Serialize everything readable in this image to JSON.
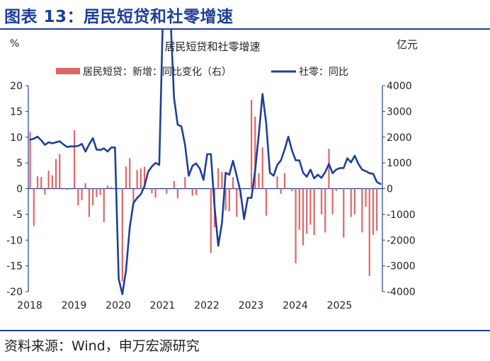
{
  "figure_title": "图表 13：居民短贷和社零增速",
  "source": "资料来源：Wind，申万宏源研究",
  "colors": {
    "title": "#1f3f99",
    "bar": "#e06666",
    "line": "#1f3f99",
    "axis": "#1f3f99"
  },
  "chart_data": {
    "type": "bar+line",
    "title": "居民短贷和社零增速",
    "left_unit": "%",
    "right_unit": "亿元",
    "left_ylim": [
      -20,
      20
    ],
    "right_ylim": [
      -4000,
      4000
    ],
    "left_ticks": [
      "20",
      "15",
      "10",
      "5",
      "0",
      "-5",
      "-10",
      "-15",
      "-20"
    ],
    "right_ticks": [
      "4000",
      "3000",
      "2000",
      "1000",
      "0",
      "-1000",
      "-2000",
      "-3000",
      "-4000"
    ],
    "x_labels": [
      "2018",
      "2019",
      "2020",
      "2021",
      "2022",
      "2023",
      "2024",
      "2025"
    ],
    "x_start": "2018-01",
    "x_end": "2025-12",
    "legend_position": "top",
    "series": [
      {
        "name": "居民短贷：新增：同比变化（右）",
        "type": "bar",
        "axis": "right",
        "values": [
          2200,
          -1450,
          480,
          450,
          -230,
          700,
          520,
          1150,
          1350,
          0,
          -50,
          0,
          2270,
          -650,
          -450,
          210,
          -1100,
          -650,
          -330,
          -240,
          -1300,
          120,
          60,
          0,
          0,
          -3600,
          860,
          1180,
          -650,
          720,
          780,
          850,
          0,
          -180,
          -350,
          0,
          0,
          -200,
          0,
          300,
          -380,
          0,
          450,
          0,
          -280,
          -250,
          0,
          0,
          0,
          -2500,
          -1500,
          790,
          650,
          -850,
          -880,
          450,
          -1100,
          -350,
          0,
          0,
          3450,
          2800,
          600,
          1600,
          -1050,
          0,
          0,
          480,
          -200,
          600,
          0,
          -100,
          -2900,
          -1600,
          -2200,
          -1750,
          -1400,
          -1800,
          0,
          -1000,
          -1700,
          1550,
          -1000,
          -90,
          0,
          -1900,
          0,
          -1100,
          -1000,
          0,
          -1700,
          -700,
          -3400,
          -1800,
          -1630,
          0
        ]
      },
      {
        "name": "社零：同比",
        "type": "line",
        "axis": "left",
        "values": [
          9.5,
          9.7,
          10.1,
          9.4,
          8.5,
          9.0,
          8.8,
          9.0,
          9.2,
          8.6,
          8.1,
          8.2,
          8.2,
          8.3,
          8.7,
          7.2,
          8.6,
          9.8,
          7.6,
          7.5,
          7.8,
          7.2,
          8.0,
          8.0,
          -17.5,
          -20.5,
          -15.8,
          -7.5,
          -2.8,
          -1.8,
          -1.1,
          0.5,
          3.3,
          4.3,
          5.0,
          4.6,
          33.8,
          34.0,
          34.2,
          17.7,
          12.4,
          12.1,
          8.5,
          2.5,
          4.4,
          4.9,
          3.9,
          1.7,
          6.7,
          6.7,
          -3.5,
          -11.1,
          -6.7,
          3.1,
          2.7,
          5.4,
          2.5,
          -0.5,
          -5.9,
          -1.8,
          -1.8,
          3.5,
          10.6,
          18.4,
          12.7,
          3.1,
          2.5,
          4.6,
          5.5,
          7.6,
          10.1,
          7.4,
          5.5,
          5.5,
          3.1,
          2.3,
          3.7,
          2.0,
          2.7,
          2.1,
          3.2,
          4.8,
          3.0,
          3.7,
          4.0,
          4.0,
          5.9,
          5.1,
          6.4,
          4.8,
          3.7,
          3.4,
          3.0,
          2.9,
          1.3,
          0.9
        ]
      }
    ]
  }
}
